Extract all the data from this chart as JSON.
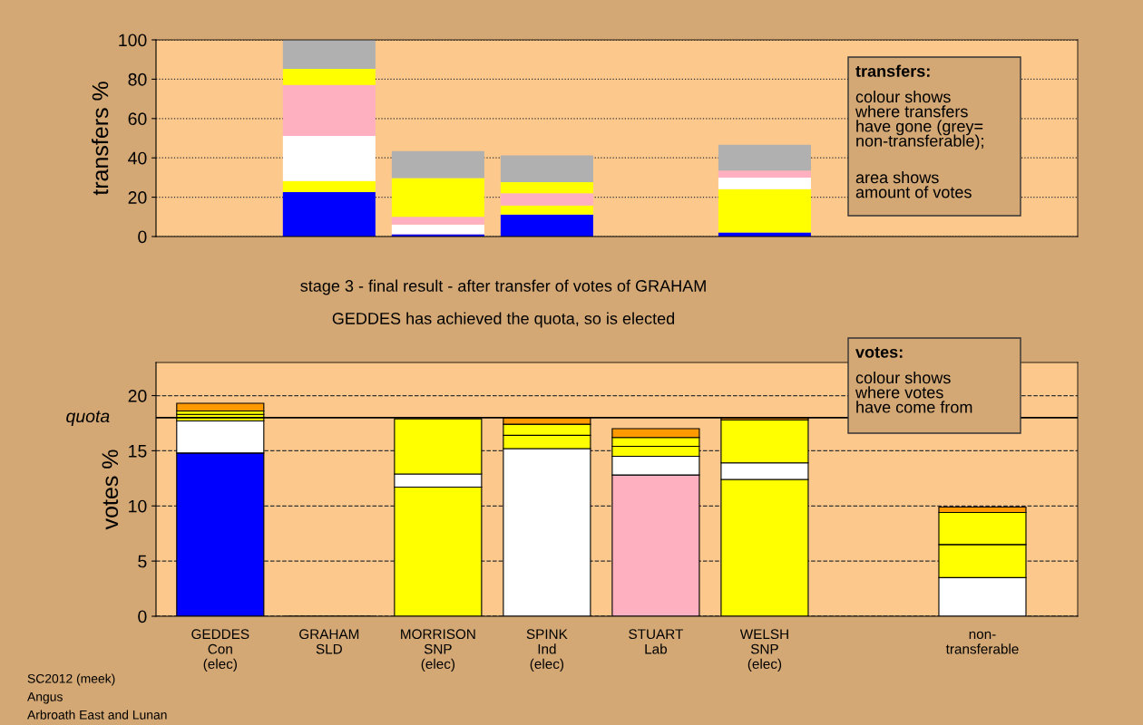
{
  "chart_data": [
    {
      "type": "bar",
      "stacked": true,
      "ylabel": "transfers %",
      "tick_labels": "y",
      "grid": "y",
      "ylim": [
        0,
        100
      ],
      "yticks": [
        0,
        20,
        40,
        60,
        80,
        100
      ],
      "categories": [
        null,
        null,
        null,
        null,
        null,
        null,
        null,
        null
      ],
      "series": [
        {
          "color": "#0000ff",
          "values": [
            null,
            22.6,
            1.2,
            11.2,
            null,
            2.1,
            null,
            null
          ]
        },
        {
          "color": "#ffff00",
          "values": [
            null,
            5.6,
            null,
            4.6,
            null,
            22.0,
            null,
            null
          ]
        },
        {
          "color": "#ffffff",
          "values": [
            null,
            22.9,
            4.9,
            null,
            null,
            5.8,
            null,
            null
          ]
        },
        {
          "color": "#ffb0c0",
          "values": [
            null,
            26.0,
            3.9,
            6.2,
            null,
            3.6,
            null,
            null
          ]
        },
        {
          "color": "#ffff00",
          "values": [
            null,
            8.2,
            19.7,
            5.7,
            null,
            null,
            null,
            null
          ]
        },
        {
          "color": "#b0b0b0",
          "values": [
            null,
            14.7,
            13.7,
            13.5,
            null,
            13.2,
            null,
            null
          ]
        }
      ],
      "annotations": [
        "transfers:",
        "colour shows\nwhere transfers\nhave gone (grey=\nnon-transferable);",
        "area shows\namount of votes"
      ]
    },
    {
      "type": "bar",
      "stacked": true,
      "title": "stage 3 - final result - after transfer of votes of GRAHAM",
      "subtitle": "GEDDES has achieved the quota, so is elected",
      "ylabel": "votes %",
      "grid": "y",
      "ylim": [
        0,
        23
      ],
      "yticks": [
        0,
        5,
        10,
        15,
        20
      ],
      "categories": [
        "GEDDES\nCon\n(elec)",
        "GRAHAM\nSLD",
        "MORRISON\nSNP\n(elec)",
        "SPINK\nInd\n(elec)",
        "STUART\nLab",
        "WELSH\nSNP\n(elec)",
        null,
        "non-\ntransferable"
      ],
      "series": [
        {
          "colors": [
            "#0000ff",
            "#ff9900",
            "#ffff00",
            "#ffffff",
            "#ffb0c0",
            "#ffff00",
            "#ffffff",
            "#ffffff"
          ],
          "values": [
            14.8,
            0,
            11.7,
            15.2,
            12.8,
            12.4,
            null,
            3.5
          ]
        },
        {
          "colors": [
            "#ffffff",
            "#ffffff",
            "#ffffff",
            "#ffff00",
            "#ffffff",
            "#ffffff",
            "#ffffff",
            "#ffff00"
          ],
          "values": [
            2.9,
            null,
            1.2,
            1.2,
            1.7,
            1.5,
            null,
            3.0
          ]
        },
        {
          "colors": [
            "#ffff00",
            "#ffff00",
            "#ffff00",
            "#ffff00",
            "#ffff00",
            "#ffff00",
            "#ffff00",
            "#ffff00"
          ],
          "values": [
            0.6,
            null,
            5.0,
            1.0,
            0.9,
            3.9,
            null,
            2.9
          ]
        },
        {
          "colors": [
            "#ffff00",
            "#ffff00",
            "#ffff00",
            "#ffff00",
            "#ffff00",
            "#ffff00",
            "#ffff00",
            "#ffff00"
          ],
          "values": [
            0.3,
            null,
            null,
            null,
            0.8,
            null,
            null,
            null
          ]
        },
        {
          "colors": [
            "#ff9900",
            "#ff9900",
            "#ff9900",
            "#ff9900",
            "#ff9900",
            "#ff9900",
            "#ff9900",
            "#ff9900"
          ],
          "values": [
            0.7,
            null,
            null,
            0.6,
            0.8,
            0.2,
            null,
            0.5
          ]
        }
      ],
      "ref_lines": [
        {
          "axis": "y",
          "value": 18,
          "label": "quota",
          "color": "#000000"
        }
      ],
      "annotations": [
        "votes:",
        "colour shows\nwhere votes\nhave come from",
        "SC2012 (meek)",
        "Angus",
        "Arbroath East and Lunan"
      ]
    }
  ]
}
